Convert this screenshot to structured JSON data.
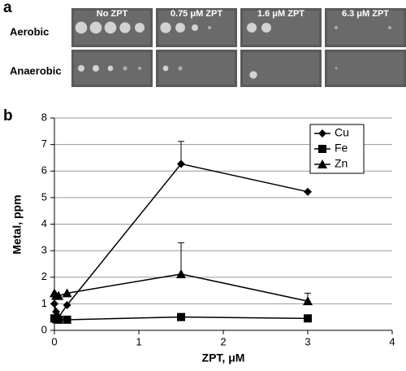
{
  "panel_a": {
    "label": "a",
    "columns": [
      "No ZPT",
      "0.75 μM ZPT",
      "1.6 μM ZPT",
      "6.3 μM ZPT"
    ],
    "rows": [
      "Aerobic",
      "Anaerobic"
    ]
  },
  "chart_data": {
    "type": "line",
    "panel_label": "b",
    "x_label": "ZPT, μM",
    "y_label": "Metal, ppm",
    "x": [
      0,
      0.02,
      0.05,
      0.15,
      1.5,
      3
    ],
    "series": [
      {
        "name": "Cu",
        "color": "#000000",
        "marker": "diamond",
        "values": [
          1.0,
          0.7,
          0.5,
          0.95,
          6.27,
          5.22
        ],
        "errors": [
          null,
          null,
          null,
          null,
          0.85,
          null
        ]
      },
      {
        "name": "Fe",
        "color": "#000000",
        "marker": "square",
        "values": [
          0.45,
          0.42,
          0.4,
          0.4,
          0.5,
          0.45
        ],
        "errors": [
          null,
          null,
          null,
          null,
          null,
          null
        ]
      },
      {
        "name": "Zn",
        "color": "#000000",
        "marker": "triangle",
        "values": [
          1.4,
          1.3,
          1.3,
          1.4,
          2.12,
          1.1
        ],
        "errors": [
          null,
          null,
          null,
          null,
          1.18,
          0.3
        ]
      }
    ],
    "xlim": [
      0,
      4
    ],
    "xticks": [
      0,
      1,
      2,
      3,
      4
    ],
    "ylim": [
      0,
      8
    ],
    "yticks": [
      0,
      1,
      2,
      3,
      4,
      5,
      6,
      7,
      8
    ],
    "grid": true,
    "legend": "top-right"
  }
}
